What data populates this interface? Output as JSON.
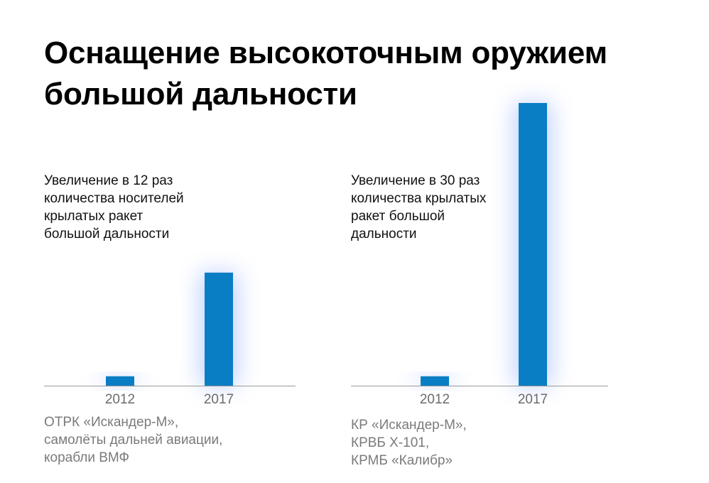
{
  "title": {
    "line1": "Оснащение высокоточным оружием",
    "line2": "большой дальности"
  },
  "colors": {
    "bar": "#0a7ec4",
    "axis": "#9a9a9a",
    "glow": "#4d7dff"
  },
  "panels": [
    {
      "caption": [
        "Увеличение в 12 раз",
        "количества носителей",
        "крылатых ракет",
        "большой дальности"
      ],
      "footer": [
        "ОТРК «Искандер-М»,",
        "самолёты дальней авиации,",
        "корабли ВМФ"
      ]
    },
    {
      "caption": [
        "Увеличение в 30 раз",
        "количества крылатых",
        "ракет большой",
        "дальности"
      ],
      "footer": [
        "КР «Искандер-М»,",
        "КРВБ Х-101,",
        "КРМБ «Калибр»"
      ]
    }
  ],
  "chart_data": [
    {
      "type": "bar",
      "categories": [
        "2012",
        "2017"
      ],
      "values": [
        1,
        12
      ],
      "ylim": [
        0,
        30
      ]
    },
    {
      "type": "bar",
      "categories": [
        "2012",
        "2017"
      ],
      "values": [
        1,
        30
      ],
      "ylim": [
        0,
        30
      ]
    }
  ]
}
